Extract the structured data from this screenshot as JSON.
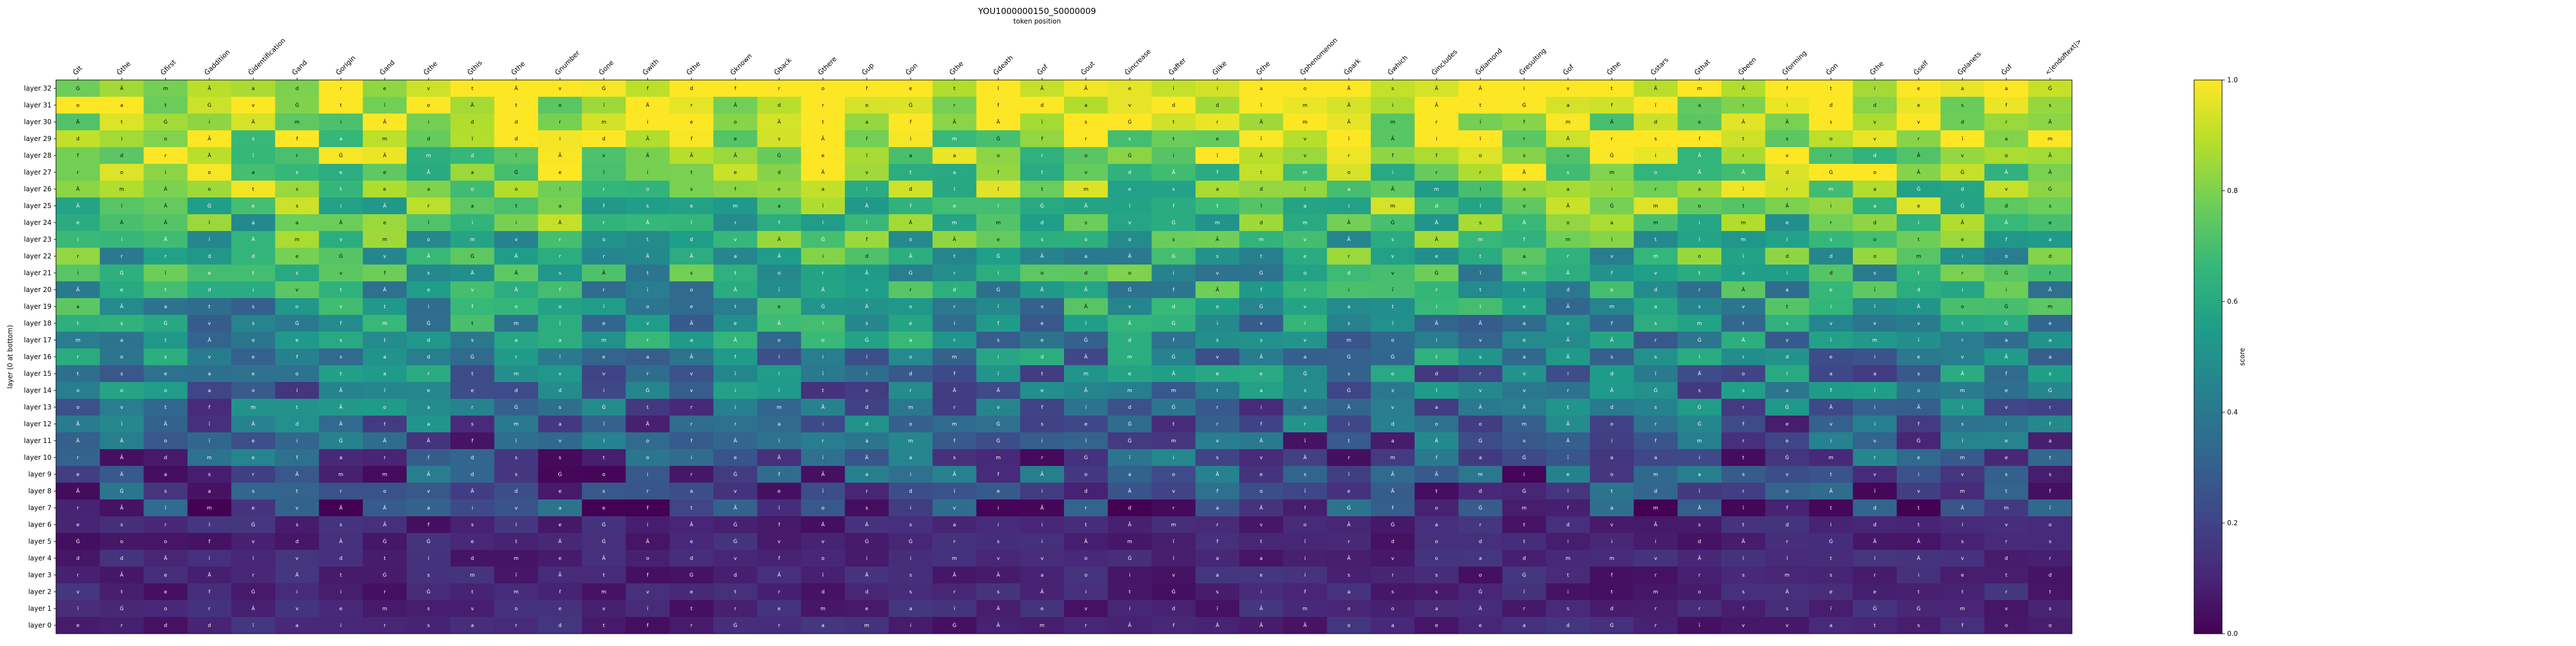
{
  "chart_data": {
    "type": "heatmap",
    "title": "YOU1000000150_S0000009",
    "xlabel": "token position",
    "ylabel": "layer (0 at bottom)",
    "colorbar_label": "score",
    "colormap": "viridis",
    "value_range": [
      0.0,
      1.0
    ],
    "colorbar_ticks": [
      "0.0",
      "0.2",
      "0.4",
      "0.6",
      "0.8",
      "1.0"
    ],
    "tokens": [
      "ĠIt",
      "Ġthe",
      "Ġfirst",
      "Ġaddition",
      "Ġidentification",
      "Ġand",
      "Ġorigin",
      "Ġand",
      "Ġthe",
      "Ġthis",
      "Ġthe",
      "Ġnumber",
      "Ġone",
      "Ġwith",
      "Ġthe",
      "Ġknown",
      "Ġback",
      "Ġthere",
      "Ġup",
      "Ġon",
      "Ġthe",
      "Ġdeath",
      "Ġof",
      "Ġout",
      "Ġincrease",
      "Ġafter",
      "Ġlike",
      "Ġthe",
      "Ġphenomenon",
      "Ġpark",
      "Ġwhich",
      "Ġincludes",
      "Ġdiamond",
      "Ġresulting",
      "Ġof",
      "Ġthe",
      "Ġstars",
      "Ġthat",
      "Ġbeen",
      "Ġforming",
      "Ġon",
      "Ġthe",
      "Ġself",
      "Ġplanets",
      "Ġof",
      "<|endoftext|>"
    ],
    "layers": [
      "layer 32",
      "layer 31",
      "layer 30",
      "layer 29",
      "layer 28",
      "layer 27",
      "layer 26",
      "layer 25",
      "layer 24",
      "layer 23",
      "layer 22",
      "layer 21",
      "layer 20",
      "layer 19",
      "layer 18",
      "layer 17",
      "layer 16",
      "layer 15",
      "layer 14",
      "layer 13",
      "layer 12",
      "layer 11",
      "layer 10",
      "layer 9",
      "layer 8",
      "layer 7",
      "layer 6",
      "layer 5",
      "layer 4",
      "layer 3",
      "layer 2",
      "layer 1",
      "layer 0"
    ],
    "colors": {
      "viridis": [
        "#440154",
        "#482878",
        "#3e4989",
        "#31688e",
        "#26828e",
        "#1f9e89",
        "#35b779",
        "#6ece58",
        "#b5de2b",
        "#fde725"
      ]
    }
  }
}
